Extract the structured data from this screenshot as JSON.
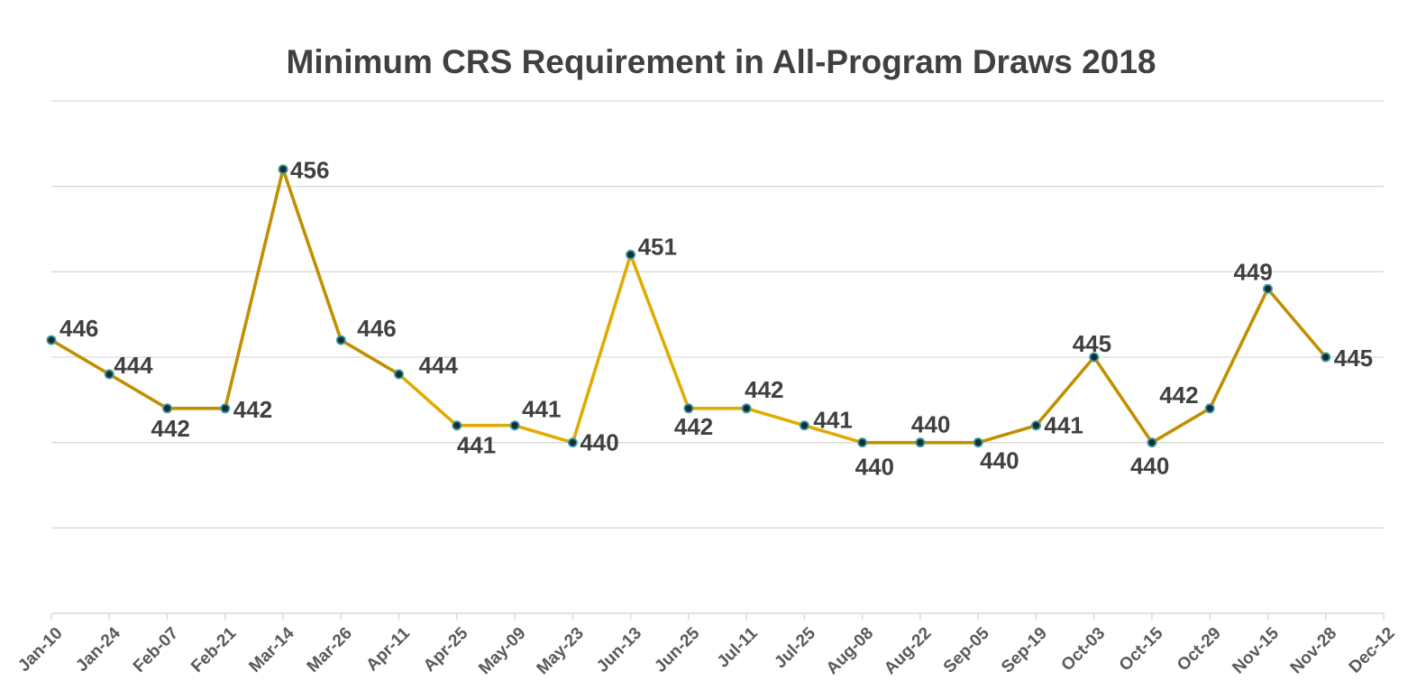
{
  "chart_data": {
    "type": "line",
    "title": "Minimum CRS Requirement in All-Program Draws 2018",
    "xlabel": "",
    "ylabel": "",
    "categories": [
      "Jan-10",
      "Jan-24",
      "Feb-07",
      "Feb-21",
      "Mar-14",
      "Mar-26",
      "Apr-11",
      "Apr-25",
      "May-09",
      "May-23",
      "Jun-13",
      "Jun-25",
      "Jul-11",
      "Jul-25",
      "Aug-08",
      "Aug-22",
      "Sep-05",
      "Sep-19",
      "Oct-03",
      "Oct-15",
      "Oct-29",
      "Nov-15",
      "Nov-28",
      "Dec-12"
    ],
    "series": [
      {
        "name": "Minimum CRS",
        "values": [
          446,
          444,
          442,
          442,
          456,
          446,
          444,
          441,
          441,
          440,
          451,
          442,
          442,
          441,
          440,
          440,
          440,
          441,
          445,
          440,
          442,
          449,
          445,
          null
        ],
        "labels": [
          "446",
          "444",
          "442",
          "442",
          "456",
          "446",
          "444",
          "441",
          "441",
          "440",
          "451",
          "442",
          "442",
          "441",
          "440",
          "440",
          "440",
          "441",
          "445",
          "440",
          "442",
          "449",
          "445",
          ""
        ]
      }
    ],
    "ylim": [
      430,
      460
    ],
    "ytick_step": 5,
    "grid": true,
    "legend": "none",
    "colors": {
      "line_a": "#c09000",
      "line_b": "#e0ac00",
      "marker_fill": "#1f2a36",
      "marker_edge": "#3aa0a0",
      "grid": "#d9d9d9",
      "text": "#404040"
    }
  }
}
